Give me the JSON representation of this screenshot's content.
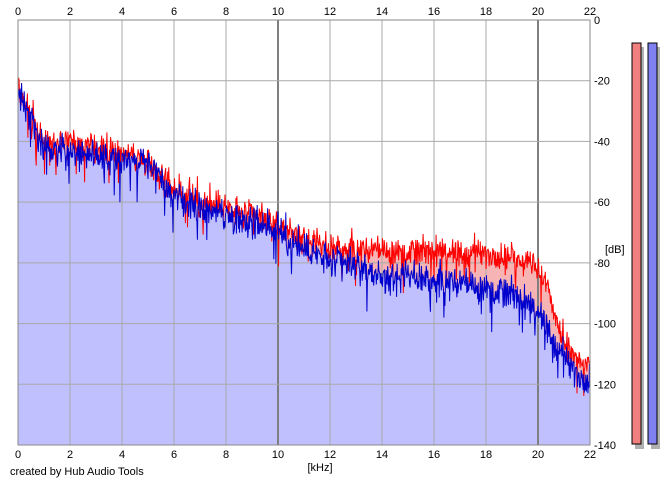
{
  "colors": {
    "background": "#ffffff",
    "plot_background": "#ffffff",
    "grid": "#a9a9a9",
    "grid_major": "#7f7f7f",
    "red_line": "#ff0000",
    "blue_line": "#0000cc",
    "red_fill": "#f6b4b4",
    "blue_fill": "#c0c0ff",
    "meter_red": "#f08080",
    "meter_blue": "#8080f0",
    "meter_shadow": "#b0b0b0"
  },
  "credit": "created by Hub Audio Tools",
  "chart_data": {
    "type": "area",
    "xlabel": "[kHz]",
    "ylabel": "[dB]",
    "xlim": [
      0,
      22
    ],
    "ylim": [
      -140,
      0
    ],
    "xticks": [
      0,
      2,
      4,
      6,
      8,
      10,
      12,
      14,
      16,
      18,
      20,
      22
    ],
    "yticks": [
      0,
      -20,
      -40,
      -60,
      -80,
      -100,
      -120,
      -140
    ],
    "major_x_gridlines": [
      10,
      20
    ],
    "grid": true,
    "x_label_positions": [
      "top",
      "bottom"
    ],
    "y_label_position": "right",
    "series": [
      {
        "color": "#ff0000",
        "fill": "#f6b4b4",
        "noise_db": 4.5,
        "envelope": [
          [
            0,
            -22
          ],
          [
            0.3,
            -28
          ],
          [
            1,
            -40
          ],
          [
            2,
            -40
          ],
          [
            3,
            -42
          ],
          [
            4,
            -44
          ],
          [
            5,
            -46
          ],
          [
            6,
            -56
          ],
          [
            7,
            -60
          ],
          [
            8,
            -62
          ],
          [
            9,
            -64
          ],
          [
            10,
            -68
          ],
          [
            11,
            -72
          ],
          [
            12,
            -75
          ],
          [
            13,
            -76
          ],
          [
            14,
            -76
          ],
          [
            15,
            -76
          ],
          [
            16,
            -76
          ],
          [
            17,
            -77
          ],
          [
            18,
            -77
          ],
          [
            19,
            -78
          ],
          [
            19.8,
            -80
          ],
          [
            20.3,
            -86
          ],
          [
            20.8,
            -102
          ],
          [
            21.3,
            -110
          ],
          [
            21.8,
            -114
          ],
          [
            22,
            -114
          ]
        ]
      },
      {
        "color": "#0000cc",
        "fill": "#c0c0ff",
        "noise_db": 5.0,
        "envelope": [
          [
            0,
            -24
          ],
          [
            0.3,
            -30
          ],
          [
            1,
            -42
          ],
          [
            2,
            -43
          ],
          [
            3,
            -45
          ],
          [
            4,
            -46
          ],
          [
            5,
            -47
          ],
          [
            6,
            -58
          ],
          [
            7,
            -62
          ],
          [
            8,
            -64
          ],
          [
            9,
            -66
          ],
          [
            10,
            -70
          ],
          [
            11,
            -76
          ],
          [
            12,
            -79
          ],
          [
            13,
            -81
          ],
          [
            14,
            -85
          ],
          [
            15,
            -84
          ],
          [
            16,
            -86
          ],
          [
            17,
            -87
          ],
          [
            18,
            -88
          ],
          [
            19,
            -90
          ],
          [
            20,
            -96
          ],
          [
            21,
            -112
          ],
          [
            21.7,
            -118
          ],
          [
            22,
            -118
          ]
        ]
      }
    ]
  }
}
